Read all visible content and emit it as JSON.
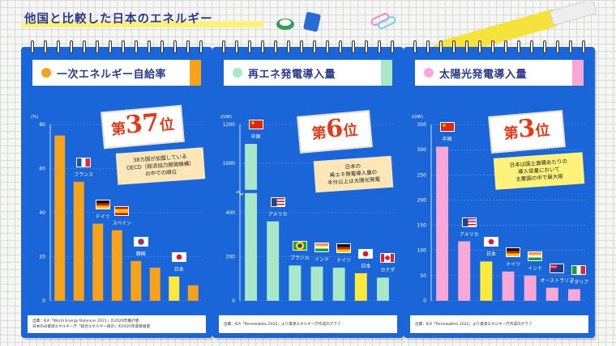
{
  "page": {
    "title": "他国と比較した日本のエネルギー"
  },
  "cards": [
    {
      "id": "self-sufficiency",
      "heading": "一次エネルギー自給率",
      "accent": "#f7a21b",
      "bar_color": "#f7a21b",
      "japan_color": "#ffe93c",
      "rank": {
        "pre": "第",
        "num": "37",
        "post": "位"
      },
      "note": [
        "38カ国が加盟している",
        "OECD（経済協力開発機構）",
        "の中での順位"
      ],
      "source": [
        "出典：IEA「World Energy Balances 2021」の2020年推計値",
        "日本のみ資源エネルギー庁「総合エネルギー統計」の2020年度確報値"
      ]
    },
    {
      "id": "renewable-generation",
      "heading": "再エネ発電導入量",
      "accent": "#a8e8c8",
      "bar_color": "#a8e8c8",
      "japan_color": "#ffe93c",
      "rank": {
        "pre": "第",
        "num": "6",
        "post": "位"
      },
      "note": [
        "日本の",
        "再エネ発電導入量の",
        "半分以上は太陽光発電"
      ],
      "source": [
        "出典：IEA「Renewables 2022」より資源エネルギー庁作成のグラフ"
      ]
    },
    {
      "id": "solar-generation",
      "heading": "太陽光発電導入量",
      "accent": "#f7a8d8",
      "bar_color": "#f7a8d8",
      "japan_color": "#ffe93c",
      "rank": {
        "pre": "第",
        "num": "3",
        "post": "位"
      },
      "note": [
        "日本は国土面積あたりの",
        "導入容量において",
        "主要国の中で最大級"
      ],
      "source": [
        "出典：IEA「Renewables 2022」より資源エネルギー庁作成のグラフ"
      ]
    }
  ],
  "chart_data": [
    {
      "type": "bar",
      "ylabel": "(%)",
      "ylim": [
        0,
        80
      ],
      "yticks": [
        0,
        20,
        40,
        60,
        80
      ],
      "categories": [
        "",
        "フランス",
        "ドイツ",
        "スペイン",
        "韓国",
        "",
        "日本",
        ""
      ],
      "flags": [
        "",
        "fr",
        "de",
        "es",
        "kr",
        "",
        "jp",
        ""
      ],
      "highlight": [
        false,
        false,
        false,
        false,
        false,
        false,
        true,
        false
      ],
      "values": [
        75,
        54,
        35,
        32,
        18,
        15,
        11,
        7
      ]
    },
    {
      "type": "bar",
      "ylabel": "(GW)",
      "ylim": [
        0,
        1200
      ],
      "yticks": [
        0,
        200,
        400,
        1000,
        1200
      ],
      "axis_break": true,
      "categories": [
        "中国",
        "アメリカ",
        "ブラジル",
        "インド",
        "ドイツ",
        "日本",
        "カナダ"
      ],
      "flags": [
        "cn",
        "us",
        "br",
        "in",
        "de",
        "jp",
        "ca"
      ],
      "highlight": [
        false,
        false,
        false,
        false,
        false,
        true,
        false
      ],
      "values": [
        1100,
        360,
        160,
        155,
        150,
        125,
        105
      ]
    },
    {
      "type": "bar",
      "ylabel": "(GW)",
      "ylim": [
        0,
        350
      ],
      "yticks": [
        0,
        50,
        100,
        150,
        200,
        250,
        300,
        350
      ],
      "categories": [
        "中国",
        "アメリカ",
        "日本",
        "ドイツ",
        "インド",
        "オーストラリア",
        "イタリア"
      ],
      "flags": [
        "cn",
        "us",
        "jp",
        "de",
        "in",
        "au",
        "it"
      ],
      "highlight": [
        false,
        false,
        true,
        false,
        false,
        false,
        false
      ],
      "values": [
        306,
        118,
        78,
        58,
        50,
        26,
        23
      ]
    }
  ]
}
